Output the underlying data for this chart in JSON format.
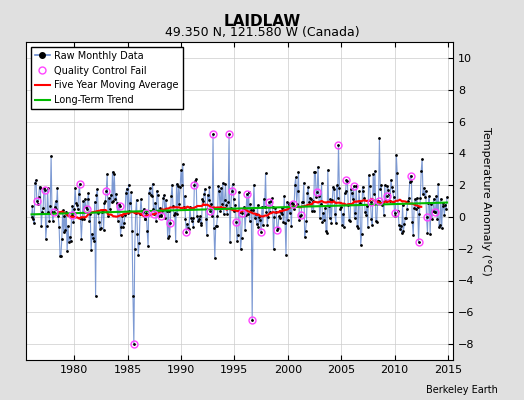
{
  "title": "LAIDLAW",
  "subtitle": "49.350 N, 121.580 W (Canada)",
  "ylabel": "Temperature Anomaly (°C)",
  "credit": "Berkeley Earth",
  "xlim": [
    1975.5,
    2015.5
  ],
  "ylim": [
    -9,
    11
  ],
  "yticks": [
    -8,
    -6,
    -4,
    -2,
    0,
    2,
    4,
    6,
    8,
    10
  ],
  "xticks": [
    1980,
    1985,
    1990,
    1995,
    2000,
    2005,
    2010,
    2015
  ],
  "background_color": "#e0e0e0",
  "plot_bg_color": "#ffffff",
  "raw_line_color": "#6688cc",
  "raw_dot_color": "#000000",
  "qc_color": "#ff44ff",
  "moving_avg_color": "#ff0000",
  "trend_color": "#00bb00",
  "seed": 12345,
  "years_start": 1976,
  "years_end": 2015
}
